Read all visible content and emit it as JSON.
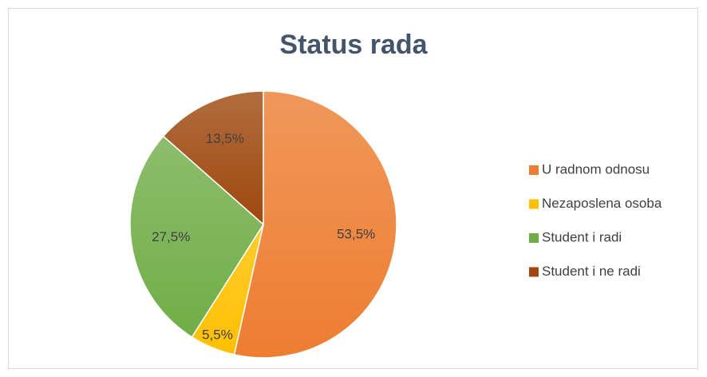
{
  "chart_data": {
    "type": "pie",
    "title": "Status rada",
    "categories": [
      "U radnom odnosu",
      "Nezaposlena osoba",
      "Student i radi",
      "Student i ne radi"
    ],
    "values": [
      53.5,
      5.5,
      27.5,
      13.5
    ],
    "value_labels": [
      "53,5%",
      "5,5%",
      "27,5%",
      "13,5%"
    ],
    "colors": [
      "#ed7d31",
      "#ffc000",
      "#70ad47",
      "#9e480e"
    ],
    "legend": "right"
  }
}
